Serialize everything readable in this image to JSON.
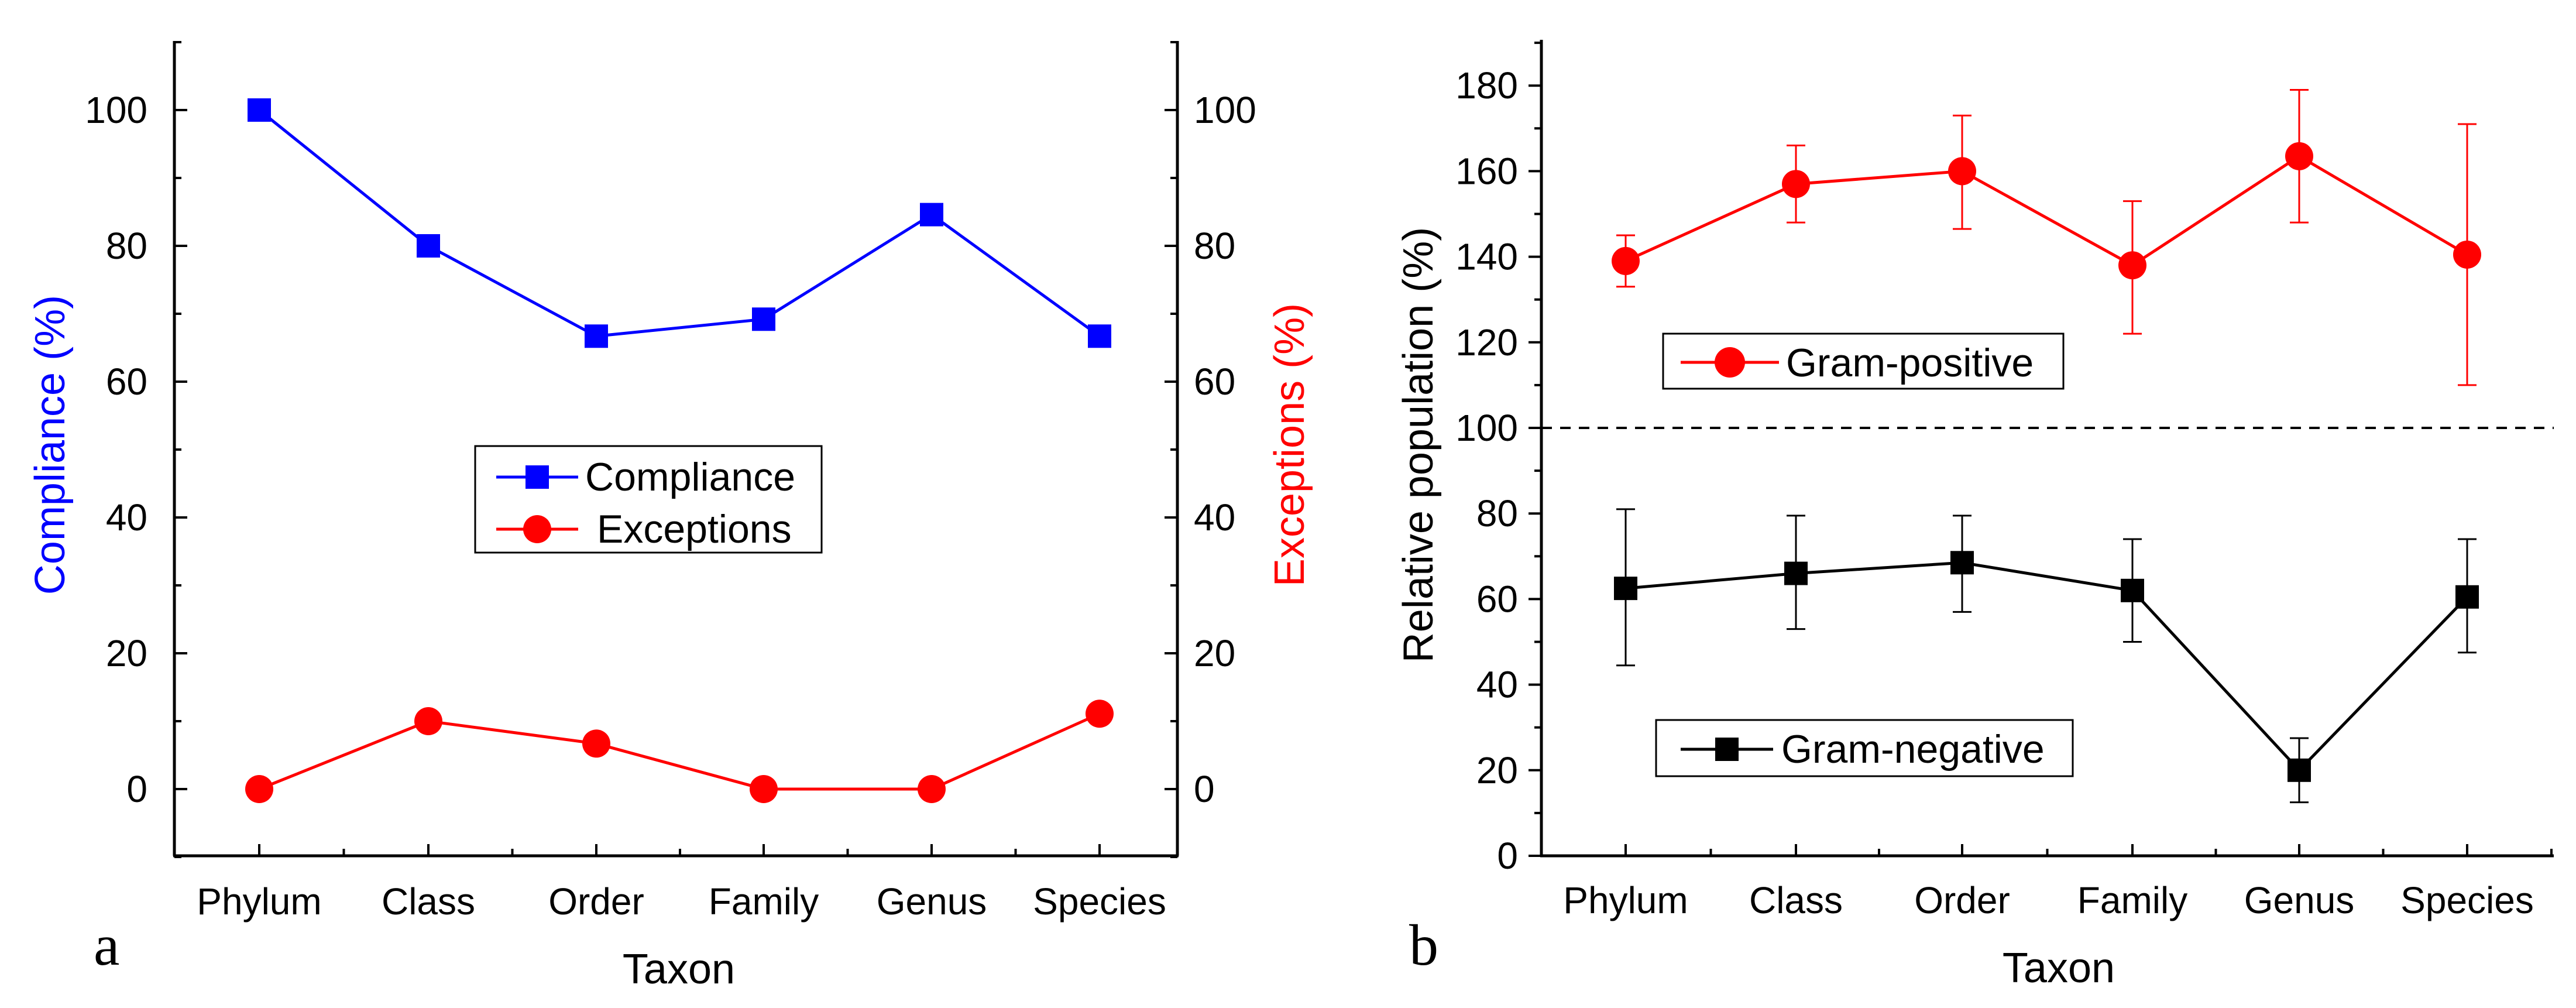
{
  "chart_data": [
    {
      "type": "line",
      "panel_label": "a",
      "xlabel": "Taxon",
      "ylabel": "Compliance (%)",
      "y2label": "Exceptions (%)",
      "categories": [
        "Phylum",
        "Class",
        "Order",
        "Family",
        "Genus",
        "Species"
      ],
      "ylim": [
        -10,
        110
      ],
      "y2lim": [
        -10,
        110
      ],
      "yticks": [
        "0",
        "20",
        "40",
        "60",
        "80",
        "100"
      ],
      "y2ticks": [
        "0",
        "20",
        "40",
        "60",
        "80",
        "100"
      ],
      "series": [
        {
          "name": "Compliance",
          "axis": "left",
          "color": "#0000ff",
          "marker": "square",
          "values": [
            100,
            80,
            66.7,
            69.2,
            84.6,
            66.7
          ]
        },
        {
          "name": "Exceptions",
          "axis": "right",
          "color": "#ff0000",
          "marker": "circle",
          "values": [
            0,
            10,
            6.7,
            0,
            0,
            11.1
          ]
        }
      ],
      "legend_position": "center"
    },
    {
      "type": "line",
      "panel_label": "b",
      "xlabel": "Taxon",
      "ylabel": "Relative population (%)",
      "categories": [
        "Phylum",
        "Class",
        "Order",
        "Family",
        "Genus",
        "Species"
      ],
      "ylim": [
        0,
        190
      ],
      "yticks": [
        "0",
        "20",
        "40",
        "60",
        "80",
        "100",
        "120",
        "140",
        "160",
        "180"
      ],
      "reference_line": 100,
      "series": [
        {
          "name": "Gram-positive",
          "color": "#ff0000",
          "marker": "circle",
          "values": [
            139,
            157,
            160,
            138,
            163.5,
            140.5
          ],
          "err_upper": [
            145,
            166,
            173,
            153,
            179,
            171
          ],
          "err_lower": [
            133,
            148,
            146.5,
            122,
            148,
            110
          ]
        },
        {
          "name": "Gram-negative",
          "color": "#000000",
          "marker": "square",
          "values": [
            62.5,
            66,
            68.5,
            62,
            20,
            60.5
          ],
          "err_upper": [
            81,
            79.5,
            79.5,
            74,
            27.5,
            74
          ],
          "err_lower": [
            44.5,
            53,
            57,
            50,
            12.5,
            47.5
          ]
        }
      ],
      "legend_position": "inside"
    }
  ]
}
